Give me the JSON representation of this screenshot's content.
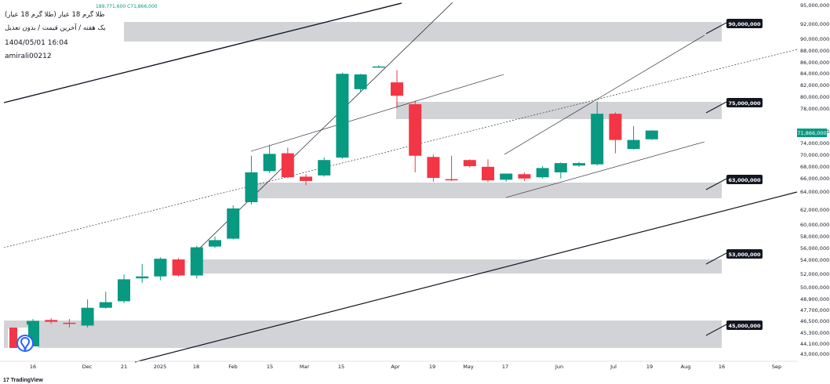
{
  "header": {
    "title": "طلا گرم 18 عیار (طلا گرم 18 عیار)",
    "subtitle": "یک هفته / آخرین قیمت / بدون تعدیل",
    "datetime": "1404/05/01 16:04",
    "author": "amirali00212",
    "ohlc_text": "189,771,600  C71,866,000"
  },
  "brand": "TradingView",
  "colors": {
    "up": "#089981",
    "down": "#f23645",
    "zone": "#c3c4c8",
    "line": "#131722",
    "label_bg": "#131722"
  },
  "chart_data": {
    "type": "candlestick",
    "y_axis": {
      "ticks": [
        {
          "v": 95000000,
          "label": "95,000,000"
        },
        {
          "v": 92000000,
          "label": "92,000,000"
        },
        {
          "v": 90000000,
          "label": "90,000,000"
        },
        {
          "v": 88000000,
          "label": "88,000,000"
        },
        {
          "v": 86000000,
          "label": "86,000,000"
        },
        {
          "v": 84000000,
          "label": "84,000,000"
        },
        {
          "v": 82000000,
          "label": "82,000,000"
        },
        {
          "v": 80000000,
          "label": "80,000,000"
        },
        {
          "v": 78000000,
          "label": "78,000,000"
        },
        {
          "v": 76000000,
          "label": "76,000,000"
        },
        {
          "v": 74000000,
          "label": "74,000,000"
        },
        {
          "v": 70000000,
          "label": "70,000,000"
        },
        {
          "v": 68000000,
          "label": "68,000,000"
        },
        {
          "v": 66000000,
          "label": "66,000,000"
        },
        {
          "v": 64000000,
          "label": "64,000,000"
        },
        {
          "v": 62000000,
          "label": "62,000,000"
        },
        {
          "v": 60000000,
          "label": "60,000,000"
        },
        {
          "v": 58000000,
          "label": "58,000,000"
        },
        {
          "v": 56000000,
          "label": "56,000,000"
        },
        {
          "v": 54000000,
          "label": "54,000,000"
        },
        {
          "v": 52000000,
          "label": "52,000,000"
        },
        {
          "v": 50000000,
          "label": "50,000,000"
        },
        {
          "v": 48900000,
          "label": "48,900,000"
        },
        {
          "v": 47700000,
          "label": "47,700,000"
        },
        {
          "v": 46500000,
          "label": "46,500,000"
        },
        {
          "v": 45300000,
          "label": "45,300,000"
        },
        {
          "v": 44100000,
          "label": "44,100,000"
        },
        {
          "v": 43000000,
          "label": "43,000,000"
        }
      ]
    },
    "x_labels": [
      "16",
      "Dec",
      "21",
      "2025",
      "18",
      "Feb",
      "15",
      "Mar",
      "15",
      "Apr",
      "19",
      "May",
      "17",
      "Jun",
      "Jul",
      "19",
      "Aug",
      "16",
      "Sep"
    ],
    "last_price": {
      "value": 71866000,
      "label": "71,866,000"
    },
    "candles": [
      {
        "o": 46200000,
        "h": 46800000,
        "l": 44800000,
        "c": 46600000
      },
      {
        "o": 46700000,
        "h": 46900000,
        "l": 46300000,
        "c": 46500000
      },
      {
        "o": 46400000,
        "h": 46800000,
        "l": 45900000,
        "c": 46300000
      },
      {
        "o": 46100000,
        "h": 48900000,
        "l": 45900000,
        "c": 48000000
      },
      {
        "o": 48000000,
        "h": 49700000,
        "l": 47900000,
        "c": 48600000
      },
      {
        "o": 48700000,
        "h": 51500000,
        "l": 48500000,
        "c": 51000000
      },
      {
        "o": 51100000,
        "h": 52600000,
        "l": 50600000,
        "c": 51300000
      },
      {
        "o": 51300000,
        "h": 53400000,
        "l": 50900000,
        "c": 53200000
      },
      {
        "o": 53100000,
        "h": 53300000,
        "l": 51300000,
        "c": 51400000
      },
      {
        "o": 51400000,
        "h": 55000000,
        "l": 51100000,
        "c": 54800000
      },
      {
        "o": 54900000,
        "h": 56300000,
        "l": 54700000,
        "c": 55800000
      },
      {
        "o": 56000000,
        "h": 60600000,
        "l": 55900000,
        "c": 60200000
      },
      {
        "o": 61000000,
        "h": 68000000,
        "l": 60700000,
        "c": 65300000
      },
      {
        "o": 65500000,
        "h": 69800000,
        "l": 65200000,
        "c": 68300000
      },
      {
        "o": 68400000,
        "h": 69300000,
        "l": 64400000,
        "c": 64500000
      },
      {
        "o": 64600000,
        "h": 65000000,
        "l": 63200000,
        "c": 63900000
      },
      {
        "o": 64800000,
        "h": 67700000,
        "l": 64600000,
        "c": 67300000
      },
      {
        "o": 67700000,
        "h": 82100000,
        "l": 67500000,
        "c": 81900000
      },
      {
        "o": 79200000,
        "h": 81900000,
        "l": 78700000,
        "c": 81800000
      },
      {
        "o": 83000000,
        "h": 83300000,
        "l": 82900000,
        "c": 83100000
      },
      {
        "o": 80500000,
        "h": 82500000,
        "l": 75200000,
        "c": 77800000
      },
      {
        "o": 76000000,
        "h": 76800000,
        "l": 65300000,
        "c": 68000000
      },
      {
        "o": 67800000,
        "h": 68200000,
        "l": 63800000,
        "c": 64400000
      },
      {
        "o": 64200000,
        "h": 68000000,
        "l": 63900000,
        "c": 64000000
      },
      {
        "o": 67300000,
        "h": 67400000,
        "l": 66100000,
        "c": 66300000
      },
      {
        "o": 66200000,
        "h": 67400000,
        "l": 63700000,
        "c": 64000000
      },
      {
        "o": 64100000,
        "h": 65000000,
        "l": 63800000,
        "c": 65100000
      },
      {
        "o": 65000000,
        "h": 65300000,
        "l": 63900000,
        "c": 64300000
      },
      {
        "o": 64500000,
        "h": 66300000,
        "l": 64300000,
        "c": 66000000
      },
      {
        "o": 65300000,
        "h": 66900000,
        "l": 64300000,
        "c": 66800000
      },
      {
        "o": 66400000,
        "h": 67000000,
        "l": 66200000,
        "c": 66800000
      },
      {
        "o": 66600000,
        "h": 76600000,
        "l": 66400000,
        "c": 74300000
      },
      {
        "o": 74300000,
        "h": 74500000,
        "l": 68400000,
        "c": 70500000
      },
      {
        "o": 69100000,
        "h": 72500000,
        "l": 69000000,
        "c": 70500000
      },
      {
        "o": 70600000,
        "h": 71900000,
        "l": 70500000,
        "c": 71866000
      }
    ],
    "zones": [
      {
        "top": 92000000,
        "bottom": 88400000,
        "label": "90,000,000",
        "value": 90000000
      },
      {
        "top": 76700000,
        "bottom": 73500000,
        "label": "75,000,000",
        "value": 75000000
      },
      {
        "top": 64100000,
        "bottom": 61600000,
        "label": "63,000,000",
        "value": 63000000
      },
      {
        "top": 54000000,
        "bottom": 51600000,
        "label": "53,000,000",
        "value": 53000000
      },
      {
        "top": 46700000,
        "bottom": 43800000,
        "label": "45,000,000",
        "value": 45000000
      }
    ]
  }
}
